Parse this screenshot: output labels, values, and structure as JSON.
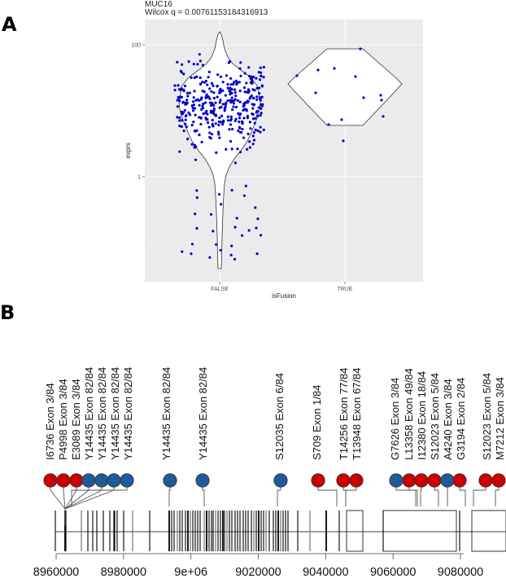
{
  "panels": {
    "a_label": "A",
    "b_label": "B"
  },
  "chart_data": [
    {
      "type": "scatter",
      "subtype": "violin_jitter",
      "title": "MUC16",
      "subtitle": "Wilcox q = 0.00761153184316913",
      "xlabel": "isFusion",
      "ylabel": "exprs",
      "categories": [
        "FALSE",
        "TRUE"
      ],
      "y_scale": "log10",
      "y_ticks": [
        "100",
        "1"
      ],
      "point_color": "#0000cc",
      "background": "#ebebeb",
      "series": [
        {
          "name": "FALSE",
          "n_points_approx": 400,
          "range_approx": [
            0.05,
            130
          ],
          "median_approx": 12
        },
        {
          "name": "TRUE",
          "n_points_approx": 14,
          "range_approx": [
            6,
            85
          ],
          "median_approx": 30
        }
      ]
    },
    {
      "type": "lollipop",
      "xlabel": "",
      "x_ticks": [
        "8960000",
        "8980000",
        "9e+06",
        "9020000",
        "9040000",
        "9060000",
        "9080000"
      ],
      "x_range": [
        8958000,
        9092000
      ],
      "colors": {
        "red": "#cc0000",
        "blue": "#1f5a99"
      },
      "mutations": [
        {
          "label": "I6736 Exon 3/84",
          "color": "red"
        },
        {
          "label": "P4998 Exon 3/84",
          "color": "red"
        },
        {
          "label": "E3089 Exon 3/84",
          "color": "red"
        },
        {
          "label": "Y14435 Exon 82/84",
          "color": "blue"
        },
        {
          "label": "Y14435 Exon 82/84",
          "color": "blue"
        },
        {
          "label": "Y14435 Exon 82/84",
          "color": "blue"
        },
        {
          "label": "Y14435 Exon 82/84",
          "color": "blue"
        },
        {
          "label": "Y14435 Exon 82/84",
          "color": "blue"
        },
        {
          "label": "Y14435 Exon 82/84",
          "color": "blue"
        },
        {
          "label": "S12035 Exon 6/84",
          "color": "blue"
        },
        {
          "label": "S709 Exon 1/84",
          "color": "red"
        },
        {
          "label": "T14256 Exon 77/84",
          "color": "red"
        },
        {
          "label": "T13948 Exon 67/84",
          "color": "red"
        },
        {
          "label": "G7626 Exon 3/84",
          "color": "blue"
        },
        {
          "label": "L13358 Exon 49/84",
          "color": "red"
        },
        {
          "label": "I12380 Exon 18/84",
          "color": "red"
        },
        {
          "label": "S12023 Exon 5/84",
          "color": "red"
        },
        {
          "label": "A4240 Exon 3/84",
          "color": "blue"
        },
        {
          "label": "G3194 Exon 2/84",
          "color": "red"
        },
        {
          "label": "S12023 Exon 5/84",
          "color": "red"
        },
        {
          "label": "M7212 Exon 3/84",
          "color": "red"
        }
      ]
    }
  ]
}
